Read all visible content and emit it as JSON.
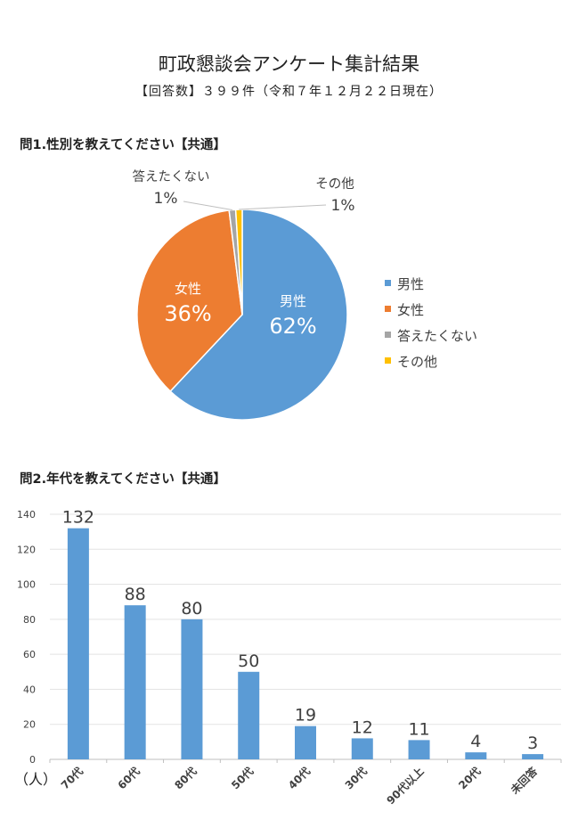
{
  "title": "町政懇談会アンケート集計結果",
  "subtitle": "【回答数】３９９件（令和７年１２月２２日現在）",
  "q1": {
    "heading": "問1.性別を教えてください【共通】"
  },
  "q2": {
    "heading": "問2.年代を教えてください【共通】"
  },
  "chart_data": [
    {
      "type": "pie",
      "title": "",
      "slices": [
        {
          "label": "男性",
          "percent_label": "62%",
          "value": 62,
          "color": "#5B9BD5"
        },
        {
          "label": "女性",
          "percent_label": "36%",
          "value": 36,
          "color": "#ED7D31"
        },
        {
          "label": "答えたくない",
          "percent_label": "1%",
          "value": 1,
          "color": "#A5A5A5"
        },
        {
          "label": "その他",
          "percent_label": "1%",
          "value": 1,
          "color": "#FFC000"
        }
      ],
      "legend": [
        "男性",
        "女性",
        "答えたくない",
        "その他"
      ],
      "legend_position": "right"
    },
    {
      "type": "bar",
      "title": "",
      "categories": [
        "70代",
        "60代",
        "80代",
        "50代",
        "40代",
        "30代",
        "90代以上",
        "20代",
        "未回答"
      ],
      "values": [
        132,
        88,
        80,
        50,
        19,
        12,
        11,
        4,
        3
      ],
      "ylim": [
        0,
        140
      ],
      "yticks": [
        "0",
        "20",
        "40",
        "60",
        "80",
        "100",
        "120",
        "140"
      ],
      "ylabel": "（人）",
      "xlabel": "",
      "color": "#5B9BD5",
      "grid": true
    }
  ]
}
